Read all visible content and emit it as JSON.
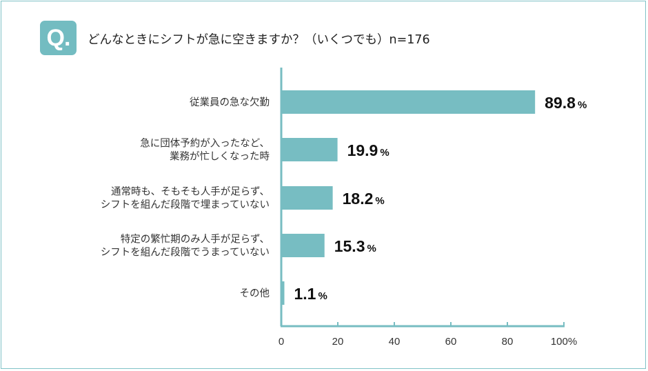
{
  "header": {
    "badge": "Q.",
    "question": "どんなときにシフトが急に空きますか？（いくつでも）n=176"
  },
  "colors": {
    "bar": "#77bdc2",
    "axis": "#77bdc2",
    "badge": "#73bcc1",
    "frame": "#7fc2c6"
  },
  "chart_data": {
    "type": "bar",
    "orientation": "horizontal",
    "title": "どんなときにシフトが急に空きますか？（いくつでも）n=176",
    "categories": [
      [
        "従業員の急な欠勤"
      ],
      [
        "急に団体予約が入ったなど、",
        "業務が忙しくなった時"
      ],
      [
        "通常時も、そもそも人手が足らず、",
        "シフトを組んだ段階で埋まっていない"
      ],
      [
        "特定の繁忙期のみ人手が足らず、",
        "シフトを組んだ段階でうまっていない"
      ],
      [
        "その他"
      ]
    ],
    "values": [
      89.8,
      19.9,
      18.2,
      15.3,
      1.1
    ],
    "value_labels": [
      "89.8",
      "19.9",
      "18.2",
      "15.3",
      "1.1"
    ],
    "value_unit": "%",
    "xlim": [
      0,
      100
    ],
    "xticks": [
      "0",
      "20",
      "40",
      "60",
      "80",
      "100%"
    ],
    "grid": false
  }
}
